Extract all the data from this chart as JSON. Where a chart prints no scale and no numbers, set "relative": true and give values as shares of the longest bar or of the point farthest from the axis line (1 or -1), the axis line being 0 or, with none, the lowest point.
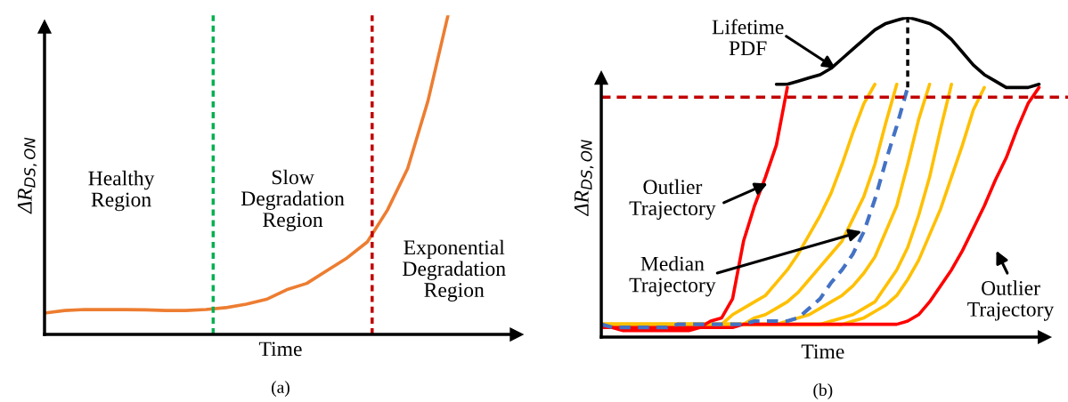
{
  "chart_data": [
    {
      "type": "line",
      "title": "(a)",
      "xlabel": "Time",
      "ylabel": "ΔR$_{DS,ON}$",
      "relative": true,
      "grid": false,
      "categories": [
        null,
        null,
        null,
        null,
        null,
        null,
        null,
        null,
        null,
        null,
        null,
        null,
        null,
        null,
        null,
        null,
        null,
        null,
        null,
        null,
        null
      ],
      "series": [
        {
          "color": "#ed7d31",
          "values": [
            0.067,
            0.075,
            0.078,
            0.078,
            0.078,
            0.077,
            0.075,
            0.075,
            0.078,
            0.084,
            0.095,
            0.11,
            0.14,
            0.16,
            0.2,
            0.24,
            0.29,
            0.39,
            0.52,
            0.73,
            1.0
          ]
        }
      ],
      "annotations": [
        "Healthy\nRegion",
        "Slow\nDegradation\nRegion",
        "Exponential\nDegradation\nRegion"
      ]
    },
    {
      "type": "line",
      "title": "(b)",
      "xlabel": "Time",
      "ylabel": "ΔR$_{DS,ON}$",
      "relative": true,
      "grid": false,
      "categories": [
        null,
        null,
        null,
        null,
        null,
        null,
        null,
        null,
        null,
        null,
        null,
        null,
        null,
        null,
        null,
        null,
        null,
        null,
        null,
        null,
        null,
        null,
        null,
        null,
        null,
        null,
        null,
        null,
        null,
        null,
        null,
        null,
        null,
        null,
        null,
        null,
        null,
        null,
        null,
        null,
        null
      ],
      "series": [
        {
          "color": "#000000",
          "values": [
            null,
            null,
            null,
            null,
            null,
            null,
            null,
            null,
            null,
            null,
            null,
            null,
            null,
            null,
            null,
            null,
            0.79,
            0.79,
            0.8,
            0.81,
            0.82,
            0.84,
            0.87,
            0.9,
            0.93,
            0.96,
            0.98,
            0.99,
            1.0,
            0.99,
            0.98,
            0.96,
            0.93,
            0.89,
            0.85,
            0.82,
            0.8,
            0.78,
            0.78,
            0.78,
            0.79
          ]
        },
        {
          "color": "#ffc000",
          "values": [
            0.04,
            0.04,
            0.04,
            0.04,
            0.04,
            0.04,
            0.04,
            0.04,
            0.04,
            0.04,
            0.04,
            0.04,
            0.07,
            0.09,
            0.11,
            0.13,
            0.17,
            0.21,
            0.26,
            0.32,
            0.38,
            0.45,
            0.54,
            0.64,
            0.73,
            0.79,
            null,
            null,
            null,
            null,
            null,
            null,
            null,
            null,
            null,
            null,
            null,
            null,
            null,
            null,
            null
          ]
        },
        {
          "color": "#ffc000",
          "values": [
            0.04,
            0.04,
            0.04,
            0.04,
            0.04,
            0.04,
            0.04,
            0.04,
            0.04,
            0.04,
            0.04,
            0.04,
            0.04,
            0.04,
            0.06,
            0.07,
            0.09,
            0.11,
            0.14,
            0.18,
            0.22,
            0.26,
            0.3,
            0.37,
            0.44,
            0.54,
            0.67,
            0.79,
            null,
            null,
            null,
            null,
            null,
            null,
            null,
            null,
            null,
            null,
            null,
            null,
            null
          ]
        },
        {
          "color": "#ffc000",
          "values": [
            0.04,
            0.04,
            0.04,
            0.04,
            0.04,
            0.04,
            0.04,
            0.04,
            0.04,
            0.04,
            0.04,
            0.04,
            0.04,
            0.04,
            0.04,
            0.04,
            0.04,
            0.05,
            0.06,
            0.07,
            0.09,
            0.11,
            0.13,
            0.16,
            0.2,
            0.25,
            0.33,
            0.41,
            0.54,
            0.68,
            0.79,
            null,
            null,
            null,
            null,
            null,
            null,
            null,
            null,
            null,
            null
          ]
        },
        {
          "color": "#ffc000",
          "values": [
            0.04,
            0.04,
            0.04,
            0.04,
            0.04,
            0.04,
            0.04,
            0.04,
            0.04,
            0.04,
            0.04,
            0.04,
            0.04,
            0.04,
            0.04,
            0.04,
            0.04,
            0.04,
            0.04,
            0.04,
            0.04,
            0.05,
            0.06,
            0.07,
            0.09,
            0.11,
            0.16,
            0.21,
            0.28,
            0.38,
            0.5,
            0.65,
            0.79,
            null,
            null,
            null,
            null,
            null,
            null,
            null,
            null
          ]
        },
        {
          "color": "#ffc000",
          "values": [
            0.04,
            0.04,
            0.04,
            0.04,
            0.04,
            0.04,
            0.04,
            0.04,
            0.04,
            0.04,
            0.04,
            0.04,
            0.04,
            0.04,
            0.04,
            0.04,
            0.04,
            0.04,
            0.04,
            0.04,
            0.04,
            0.04,
            0.04,
            0.05,
            0.06,
            0.08,
            0.1,
            0.13,
            0.18,
            0.24,
            0.32,
            0.4,
            0.5,
            0.6,
            0.71,
            0.78,
            null,
            null,
            null,
            null,
            null
          ]
        },
        {
          "color": "#ff0000",
          "values": [
            0.03,
            0.03,
            0.02,
            0.02,
            0.02,
            0.02,
            0.02,
            0.02,
            0.02,
            0.03,
            0.05,
            0.06,
            0.12,
            0.3,
            0.41,
            0.5,
            0.6,
            0.78,
            null,
            null,
            null,
            null,
            null,
            null,
            null,
            null,
            null,
            null,
            null,
            null,
            null,
            null,
            null,
            null,
            null,
            null,
            null,
            null,
            null,
            null,
            null
          ]
        },
        {
          "color": "#ff0000",
          "values": [
            0.03,
            0.03,
            0.03,
            0.03,
            0.03,
            0.03,
            0.03,
            0.03,
            0.03,
            0.03,
            0.03,
            0.03,
            0.03,
            0.04,
            0.04,
            0.04,
            0.04,
            0.04,
            0.04,
            0.04,
            0.04,
            0.04,
            0.04,
            0.04,
            0.04,
            0.04,
            0.04,
            0.04,
            0.05,
            0.07,
            0.11,
            0.16,
            0.21,
            0.27,
            0.34,
            0.41,
            0.49,
            0.56,
            0.65,
            0.73,
            0.78
          ]
        },
        {
          "color": "#4472c4",
          "line_style": "dashed",
          "values": [
            0.04,
            0.03,
            0.03,
            0.03,
            0.03,
            0.03,
            0.03,
            0.04,
            0.04,
            0.04,
            0.04,
            0.04,
            0.04,
            0.04,
            0.05,
            0.05,
            0.05,
            0.05,
            0.06,
            0.09,
            0.12,
            0.17,
            0.21,
            0.26,
            0.33,
            0.43,
            0.55,
            0.66,
            0.78,
            null,
            null,
            null,
            null,
            null,
            null,
            null,
            null,
            null,
            null,
            null,
            null
          ]
        }
      ],
      "ref_lines": [
        {
          "axis": "y",
          "value": 0.75,
          "color": "#c00000",
          "line_style": "dashed"
        }
      ],
      "annotations": [
        "Lifetime\nPDF",
        "Outlier\nTrajectory",
        "Median\nTrajectory",
        "Outlier\nTrajectory"
      ]
    }
  ]
}
